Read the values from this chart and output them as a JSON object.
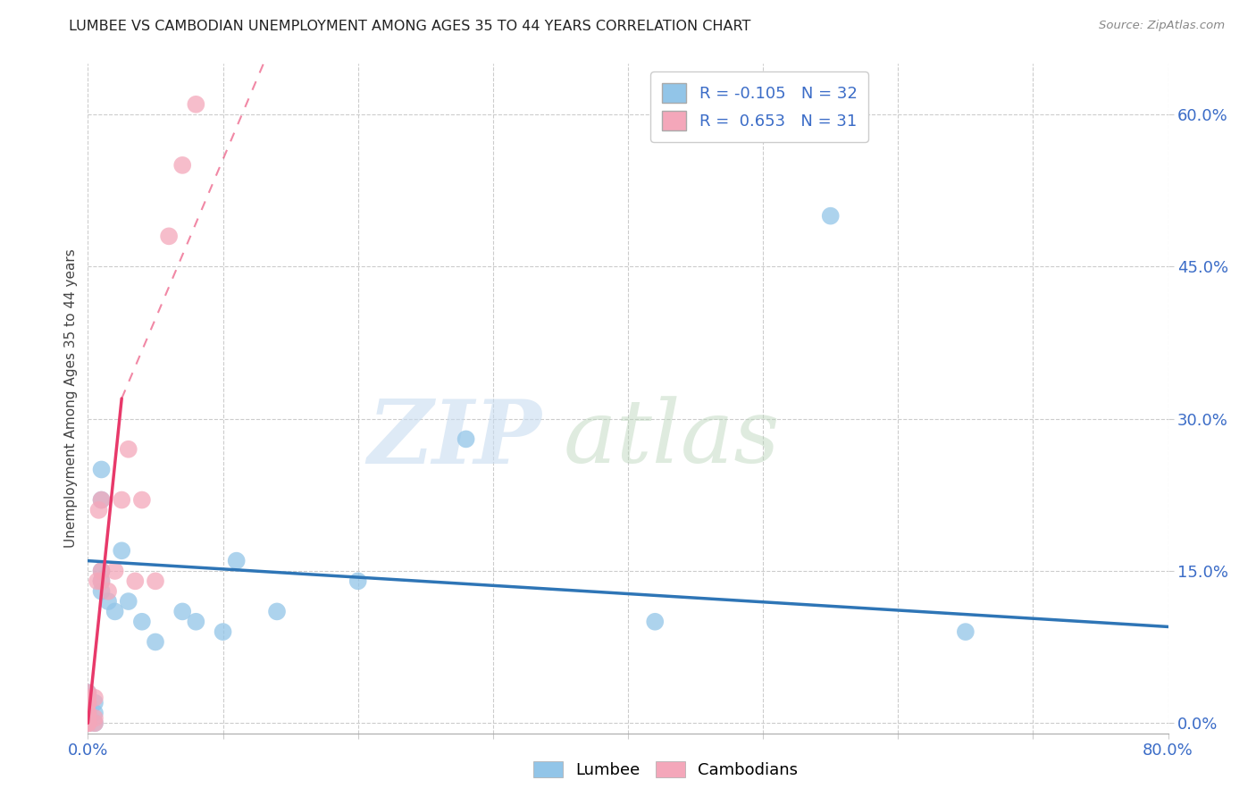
{
  "title": "LUMBEE VS CAMBODIAN UNEMPLOYMENT AMONG AGES 35 TO 44 YEARS CORRELATION CHART",
  "source_text": "Source: ZipAtlas.com",
  "ylabel": "Unemployment Among Ages 35 to 44 years",
  "xlim": [
    0,
    0.8
  ],
  "ylim": [
    -0.01,
    0.65
  ],
  "xtick_positions": [
    0.0,
    0.1,
    0.2,
    0.3,
    0.4,
    0.5,
    0.6,
    0.7,
    0.8
  ],
  "xticklabels_left": "0.0%",
  "xticklabels_right": "80.0%",
  "ytick_positions": [
    0.0,
    0.15,
    0.3,
    0.45,
    0.6
  ],
  "ytick_labels": [
    "0.0%",
    "15.0%",
    "30.0%",
    "45.0%",
    "60.0%"
  ],
  "lumbee_color": "#92C5E8",
  "cambodian_color": "#F4A7BA",
  "lumbee_R": -0.105,
  "lumbee_N": 32,
  "cambodian_R": 0.653,
  "cambodian_N": 31,
  "lumbee_line_color": "#2E75B6",
  "cambodian_line_color": "#E8396A",
  "lumbee_x": [
    0.0,
    0.0,
    0.0,
    0.0,
    0.0,
    0.0,
    0.0,
    0.0,
    0.005,
    0.005,
    0.005,
    0.01,
    0.01,
    0.01,
    0.01,
    0.01,
    0.015,
    0.02,
    0.025,
    0.03,
    0.04,
    0.05,
    0.07,
    0.08,
    0.1,
    0.11,
    0.14,
    0.2,
    0.28,
    0.42,
    0.55,
    0.65
  ],
  "lumbee_y": [
    0.0,
    0.0,
    0.0,
    0.01,
    0.01,
    0.02,
    0.02,
    0.03,
    0.0,
    0.01,
    0.02,
    0.13,
    0.14,
    0.15,
    0.22,
    0.25,
    0.12,
    0.11,
    0.17,
    0.12,
    0.1,
    0.08,
    0.11,
    0.1,
    0.09,
    0.16,
    0.11,
    0.14,
    0.28,
    0.1,
    0.5,
    0.09
  ],
  "cambodian_x": [
    0.0,
    0.0,
    0.0,
    0.0,
    0.0,
    0.0,
    0.0,
    0.0,
    0.0,
    0.0,
    0.0,
    0.0,
    0.0,
    0.005,
    0.005,
    0.005,
    0.007,
    0.008,
    0.01,
    0.01,
    0.01,
    0.015,
    0.02,
    0.025,
    0.03,
    0.035,
    0.04,
    0.05,
    0.06,
    0.07,
    0.08
  ],
  "cambodian_y": [
    0.0,
    0.0,
    0.0,
    0.0,
    0.0,
    0.005,
    0.005,
    0.01,
    0.01,
    0.02,
    0.02,
    0.025,
    0.03,
    0.0,
    0.005,
    0.025,
    0.14,
    0.21,
    0.14,
    0.15,
    0.22,
    0.13,
    0.15,
    0.22,
    0.27,
    0.14,
    0.22,
    0.14,
    0.48,
    0.55,
    0.61
  ],
  "lumbee_line_x0": 0.0,
  "lumbee_line_x1": 0.8,
  "lumbee_line_y0": 0.16,
  "lumbee_line_y1": 0.095,
  "cambodian_line_solid_x0": 0.0,
  "cambodian_line_solid_x1": 0.025,
  "cambodian_line_dashed_x0": 0.025,
  "cambodian_line_dashed_x1": 0.13,
  "cambodian_line_y0": 0.0,
  "cambodian_line_y1_solid": 0.32,
  "cambodian_line_y1_dashed": 0.65
}
